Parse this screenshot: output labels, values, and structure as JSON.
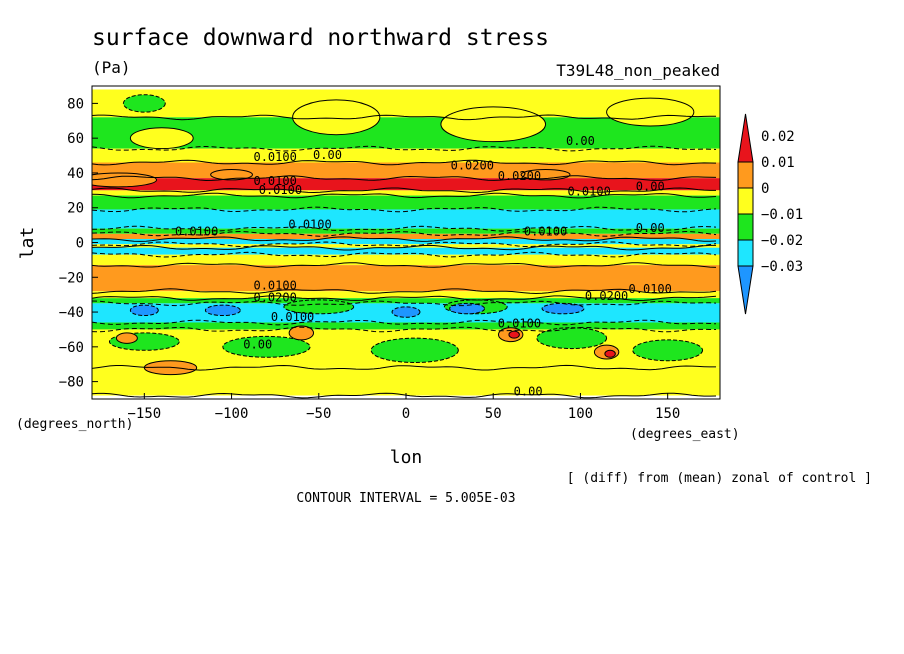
{
  "chart_data": {
    "type": "heatmap",
    "title": "surface downward northward stress",
    "units": "(Pa)",
    "experiment": "T39L48_non_peaked",
    "xlabel": "lon",
    "ylabel": "lat",
    "x_units_label": "(degrees_east)",
    "y_units_label": "(degrees_north)",
    "xlim": [
      -180,
      180
    ],
    "ylim": [
      -90,
      90
    ],
    "x_ticks": [
      "-150",
      "-100",
      "-50",
      "0",
      "50",
      "100",
      "150"
    ],
    "y_ticks": [
      "80",
      "60",
      "40",
      "20",
      "0",
      "-20",
      "-40",
      "-60",
      "-80"
    ],
    "colorbar": {
      "labels": [
        "0.02",
        "0.01",
        "0",
        "-0.01",
        "-0.02",
        "-0.03"
      ],
      "bins": [
        {
          "range": [
            0.02,
            0.03
          ],
          "color": "#e8141c"
        },
        {
          "range": [
            0.01,
            0.02
          ],
          "color": "#ff9a1e"
        },
        {
          "range": [
            0.0,
            0.01
          ],
          "color": "#ffff1e"
        },
        {
          "range": [
            -0.01,
            0.0
          ],
          "color": "#1ee61e"
        },
        {
          "range": [
            -0.02,
            -0.01
          ],
          "color": "#1ee6ff"
        },
        {
          "range": [
            -0.03,
            -0.02
          ],
          "color": "#1e96ff"
        }
      ]
    },
    "zonal_bands": [
      {
        "lat": [
          72,
          88
        ],
        "value": 0.004
      },
      {
        "lat": [
          54,
          72
        ],
        "value": -0.004
      },
      {
        "lat": [
          46,
          54
        ],
        "value": 0.004
      },
      {
        "lat": [
          37,
          46
        ],
        "value": 0.014
      },
      {
        "lat": [
          30,
          37
        ],
        "value": 0.021
      },
      {
        "lat": [
          27,
          30
        ],
        "value": 0.004
      },
      {
        "lat": [
          19,
          27
        ],
        "value": -0.004
      },
      {
        "lat": [
          8,
          19
        ],
        "value": -0.014
      },
      {
        "lat": [
          5,
          8
        ],
        "value": -0.004
      },
      {
        "lat": [
          2,
          5
        ],
        "value": 0.014
      },
      {
        "lat": [
          -1,
          2
        ],
        "value": -0.014
      },
      {
        "lat": [
          -3,
          -1
        ],
        "value": 0.004
      },
      {
        "lat": [
          -7,
          -3
        ],
        "value": -0.014
      },
      {
        "lat": [
          -13,
          -7
        ],
        "value": 0.004
      },
      {
        "lat": [
          -28,
          -13
        ],
        "value": 0.014
      },
      {
        "lat": [
          -32,
          -28
        ],
        "value": 0.004
      },
      {
        "lat": [
          -35,
          -32
        ],
        "value": -0.004
      },
      {
        "lat": [
          -46,
          -35
        ],
        "value": -0.014
      },
      {
        "lat": [
          -50,
          -46
        ],
        "value": -0.004
      },
      {
        "lat": [
          -72,
          -50
        ],
        "value": 0.004
      },
      {
        "lat": [
          -88,
          -72
        ],
        "value": 0.004
      }
    ],
    "features": [
      {
        "lon": -165,
        "lat": 36,
        "dlon": 22,
        "dlat": 4,
        "value": 0.014
      },
      {
        "lon": -100,
        "lat": 39,
        "dlon": 12,
        "dlat": 3,
        "value": 0.014
      },
      {
        "lon": 80,
        "lat": 39,
        "dlon": 14,
        "dlat": 3,
        "value": 0.014
      },
      {
        "lon": -40,
        "lat": 72,
        "dlon": 25,
        "dlat": 10,
        "value": 0.004
      },
      {
        "lon": 50,
        "lat": 68,
        "dlon": 30,
        "dlat": 10,
        "value": 0.004
      },
      {
        "lon": 140,
        "lat": 75,
        "dlon": 25,
        "dlat": 8,
        "value": 0.004
      },
      {
        "lon": -140,
        "lat": 60,
        "dlon": 18,
        "dlat": 6,
        "value": 0.004
      },
      {
        "lon": -150,
        "lat": 80,
        "dlon": 12,
        "dlat": 5,
        "value": -0.004
      },
      {
        "lon": -50,
        "lat": -37,
        "dlon": 20,
        "dlat": 4,
        "value": -0.004
      },
      {
        "lon": 40,
        "lat": -37,
        "dlon": 18,
        "dlat": 4,
        "value": -0.004
      },
      {
        "lon": -150,
        "lat": -39,
        "dlon": 8,
        "dlat": 3,
        "value": -0.024
      },
      {
        "lon": -105,
        "lat": -39,
        "dlon": 10,
        "dlat": 3,
        "value": -0.024
      },
      {
        "lon": 0,
        "lat": -40,
        "dlon": 8,
        "dlat": 3,
        "value": -0.024
      },
      {
        "lon": 35,
        "lat": -38,
        "dlon": 10,
        "dlat": 3,
        "value": -0.024
      },
      {
        "lon": 90,
        "lat": -38,
        "dlon": 12,
        "dlat": 3,
        "value": -0.024
      },
      {
        "lon": -150,
        "lat": -57,
        "dlon": 20,
        "dlat": 5,
        "value": -0.004
      },
      {
        "lon": -80,
        "lat": -60,
        "dlon": 25,
        "dlat": 6,
        "value": -0.004
      },
      {
        "lon": 5,
        "lat": -62,
        "dlon": 25,
        "dlat": 7,
        "value": -0.004
      },
      {
        "lon": 95,
        "lat": -55,
        "dlon": 20,
        "dlat": 6,
        "value": -0.004
      },
      {
        "lon": 150,
        "lat": -62,
        "dlon": 20,
        "dlat": 6,
        "value": -0.004
      },
      {
        "lon": -135,
        "lat": -72,
        "dlon": 15,
        "dlat": 4,
        "value": 0.014
      },
      {
        "lon": -60,
        "lat": -52,
        "dlon": 7,
        "dlat": 4,
        "value": 0.014
      },
      {
        "lon": 60,
        "lat": -53,
        "dlon": 7,
        "dlat": 4,
        "value": 0.014
      },
      {
        "lon": 62,
        "lat": -53,
        "dlon": 3,
        "dlat": 2,
        "value": 0.024
      },
      {
        "lon": 115,
        "lat": -63,
        "dlon": 7,
        "dlat": 4,
        "value": 0.014
      },
      {
        "lon": 117,
        "lat": -64,
        "dlon": 3,
        "dlat": 2,
        "value": 0.024
      },
      {
        "lon": -160,
        "lat": -55,
        "dlon": 6,
        "dlat": 3,
        "value": 0.014
      }
    ],
    "contour_labels": [
      {
        "text": "0.0100",
        "lon": -75,
        "lat": 47
      },
      {
        "text": "0.00",
        "lon": -45,
        "lat": 48
      },
      {
        "text": "0.00",
        "lon": 100,
        "lat": 56
      },
      {
        "text": "0.0200",
        "lon": 38,
        "lat": 42
      },
      {
        "text": "0.0200",
        "lon": 65,
        "lat": 36
      },
      {
        "text": "0.0100",
        "lon": -75,
        "lat": 33
      },
      {
        "text": "0.0100",
        "lon": -72,
        "lat": 28
      },
      {
        "text": "0.0100",
        "lon": 105,
        "lat": 27
      },
      {
        "text": "0.00",
        "lon": 140,
        "lat": 30
      },
      {
        "text": "0.0100",
        "lon": -120,
        "lat": 4
      },
      {
        "text": "0.0100",
        "lon": -55,
        "lat": 8
      },
      {
        "text": "0.0100",
        "lon": 80,
        "lat": 4
      },
      {
        "text": "0.00",
        "lon": 140,
        "lat": 6
      },
      {
        "text": "0.0100",
        "lon": -75,
        "lat": -27
      },
      {
        "text": "0.0200",
        "lon": -75,
        "lat": -34
      },
      {
        "text": "0.0100",
        "lon": 140,
        "lat": -29
      },
      {
        "text": "0.0200",
        "lon": 115,
        "lat": -33
      },
      {
        "text": "0.0100",
        "lon": -65,
        "lat": -45
      },
      {
        "text": "0.0100",
        "lon": 65,
        "lat": -49
      },
      {
        "text": "0.00",
        "lon": -85,
        "lat": -61
      },
      {
        "text": "0.00",
        "lon": 70,
        "lat": -88
      }
    ]
  },
  "footer": {
    "note": "[ (diff) from (mean) zonal of control ]",
    "contour_interval": "CONTOUR INTERVAL = 5.005E-03"
  }
}
